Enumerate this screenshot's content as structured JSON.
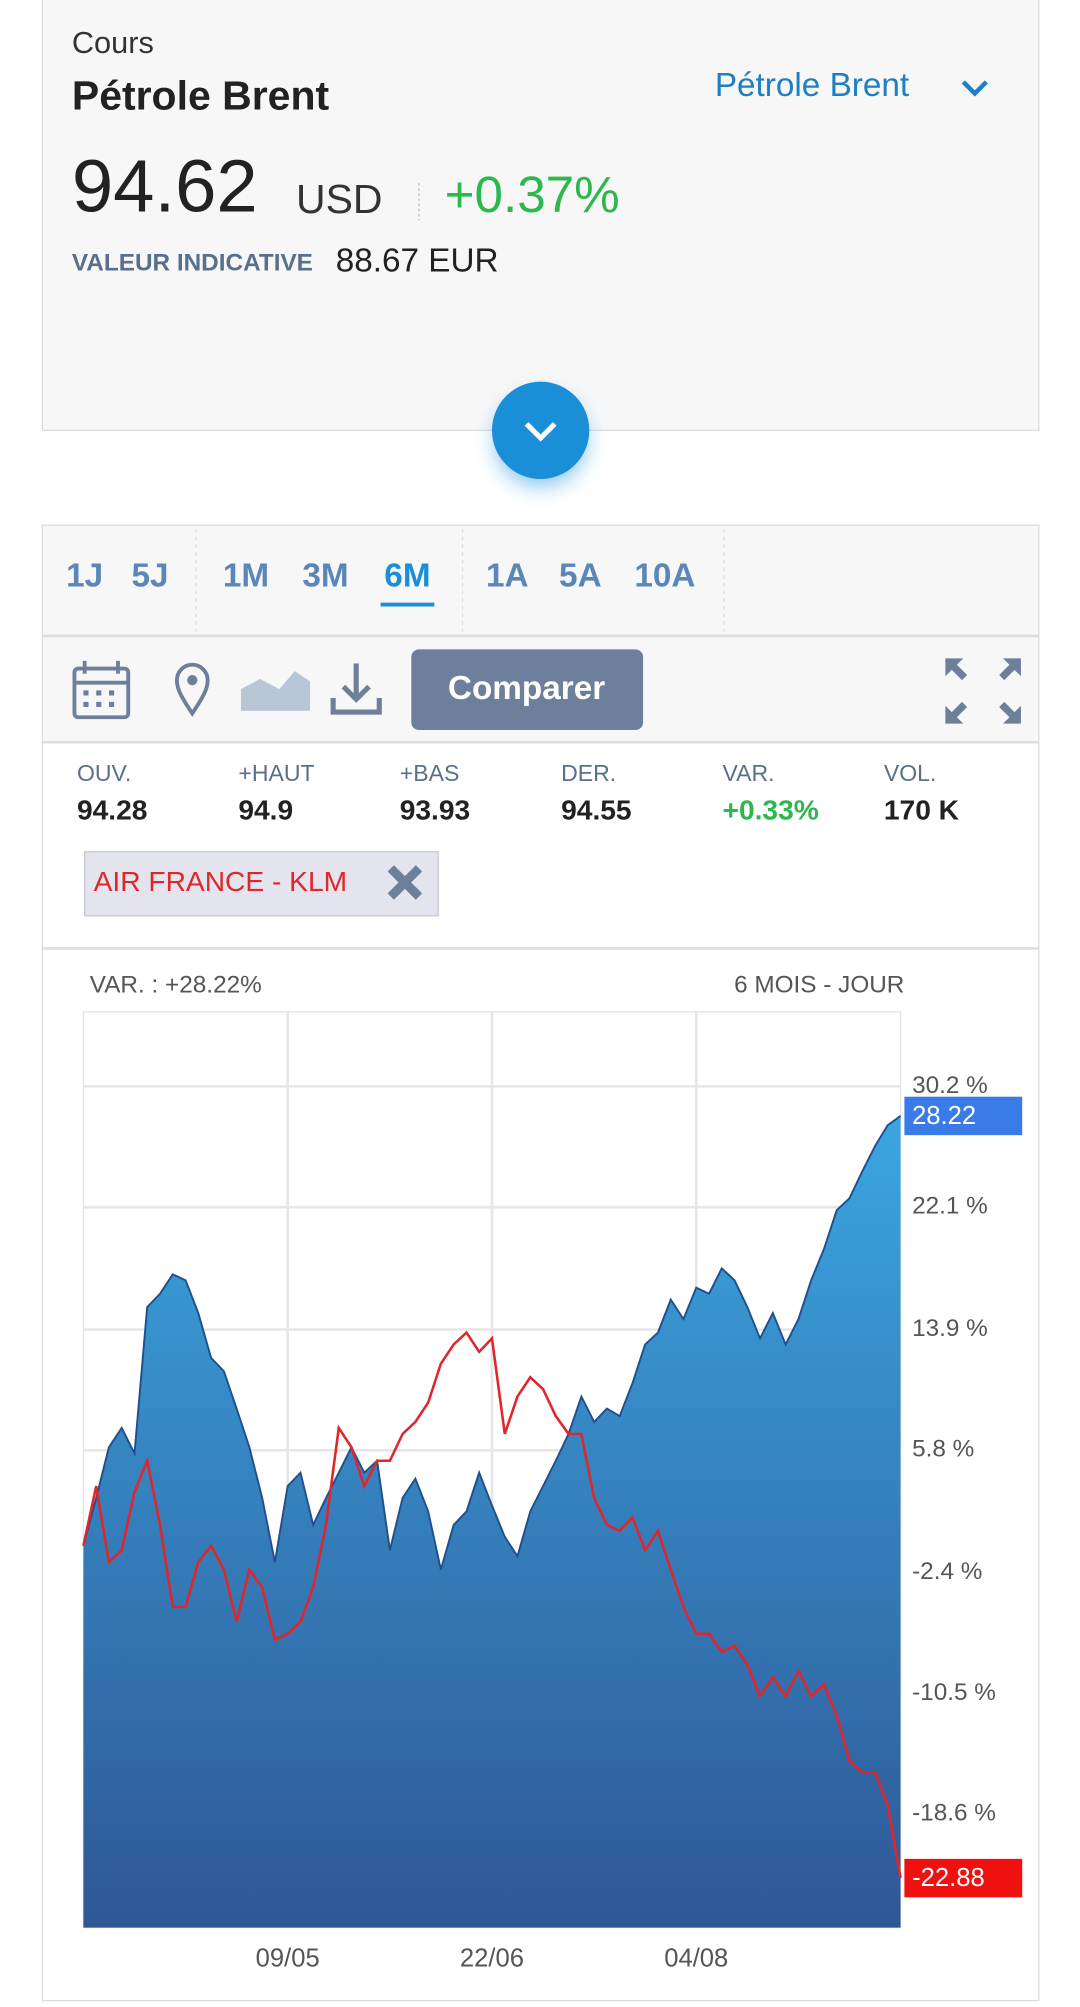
{
  "header": {
    "label": "Cours",
    "title": "Pétrole Brent",
    "selector": "Pétrole Brent",
    "price": "94.62",
    "currency": "USD",
    "change": "+0.37%",
    "indicative_label": "VALEUR INDICATIVE",
    "indicative_value": "88.67 EUR"
  },
  "periods": [
    {
      "label": "1J"
    },
    {
      "label": "5J"
    },
    {
      "label": "1M"
    },
    {
      "label": "3M"
    },
    {
      "label": "6M",
      "selected": true
    },
    {
      "label": "1A"
    },
    {
      "label": "5A"
    },
    {
      "label": "10A"
    }
  ],
  "toolbar": {
    "compare": "Comparer"
  },
  "stats": [
    {
      "label": "OUV.",
      "value": "94.28"
    },
    {
      "label": "+HAUT",
      "value": "94.9"
    },
    {
      "label": "+BAS",
      "value": "93.93"
    },
    {
      "label": "DER.",
      "value": "94.55"
    },
    {
      "label": "VAR.",
      "value": "+0.33%",
      "positive": true
    },
    {
      "label": "VOL.",
      "value": "170 K"
    }
  ],
  "chart_data": {
    "type": "area",
    "subtitle_left": "VAR. : +28.22%",
    "subtitle_right": "6 MOIS - JOUR",
    "categories": [
      null,
      null,
      null,
      null,
      null,
      null,
      null,
      null,
      null,
      null,
      null,
      null,
      null,
      null,
      null,
      null,
      "09/05",
      null,
      null,
      null,
      null,
      null,
      null,
      null,
      null,
      null,
      null,
      null,
      null,
      null,
      null,
      null,
      "22/06",
      null,
      null,
      null,
      null,
      null,
      null,
      null,
      null,
      null,
      null,
      null,
      null,
      null,
      null,
      null,
      "04/08",
      null,
      null,
      null,
      null,
      null,
      null,
      null,
      null,
      null,
      null,
      null,
      null,
      null,
      null,
      null,
      null
    ],
    "series": [
      {
        "color": "#3a9fd8",
        "style": "area",
        "values": [
          -0.6,
          2.6,
          6.0,
          7.3,
          5.6,
          15.4,
          16.3,
          17.6,
          17.2,
          15.0,
          12.0,
          11.1,
          8.6,
          6.0,
          2.6,
          -1.7,
          3.4,
          4.3,
          0.8,
          2.6,
          4.3,
          6.0,
          4.3,
          5.1,
          -0.9,
          2.6,
          3.9,
          1.7,
          -2.2,
          0.8,
          1.7,
          4.3,
          2.1,
          0.0,
          -1.3,
          1.7,
          3.4,
          5.1,
          6.9,
          9.4,
          7.7,
          8.6,
          8.1,
          10.3,
          12.9,
          13.7,
          15.9,
          14.6,
          16.7,
          16.3,
          18.0,
          17.2,
          15.4,
          13.3,
          15.0,
          12.9,
          14.6,
          17.2,
          19.3,
          21.9,
          22.7,
          24.5,
          26.2,
          27.6,
          28.22
        ]
      },
      {
        "name": "AIR FRANCE - KLM",
        "color": "#e0262b",
        "style": "line",
        "values": [
          -0.6,
          3.4,
          -1.7,
          -0.9,
          3.0,
          5.1,
          0.8,
          -4.7,
          -4.7,
          -1.7,
          -0.6,
          -2.2,
          -5.7,
          -2.2,
          -3.4,
          -6.9,
          -6.5,
          -5.7,
          -3.4,
          0.8,
          7.3,
          6.0,
          3.4,
          5.1,
          5.1,
          6.9,
          7.7,
          9.0,
          11.6,
          12.9,
          13.7,
          12.4,
          13.3,
          6.9,
          9.4,
          10.7,
          9.9,
          8.1,
          6.9,
          6.9,
          2.6,
          0.8,
          0.4,
          1.3,
          -0.9,
          0.4,
          -2.2,
          -4.7,
          -6.5,
          -6.5,
          -7.7,
          -7.3,
          -8.6,
          -10.7,
          -9.4,
          -10.7,
          -9.0,
          -10.7,
          -9.9,
          -12.0,
          -15.0,
          -15.8,
          -15.8,
          -18.0,
          -22.88
        ]
      }
    ],
    "ylim": [
      -26.2,
      35.2
    ],
    "yticks": [
      {
        "value": 30.2,
        "label": "30.2 %"
      },
      {
        "value": 22.1,
        "label": "22.1 %"
      },
      {
        "value": 13.9,
        "label": "13.9 %"
      },
      {
        "value": 5.8,
        "label": "5.8 %"
      },
      {
        "value": -2.4,
        "label": "-2.4 %"
      },
      {
        "value": -10.5,
        "label": "-10.5 %"
      },
      {
        "value": -18.6,
        "label": "-18.6 %"
      }
    ],
    "grid": true
  }
}
